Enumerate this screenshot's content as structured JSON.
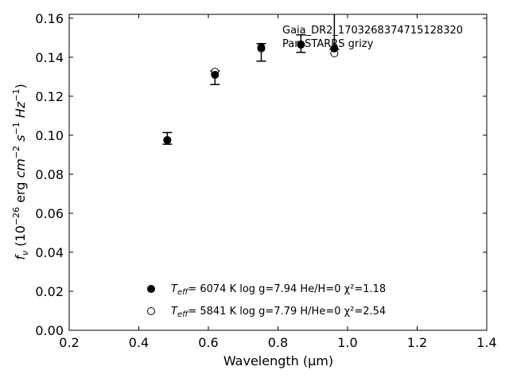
{
  "chart_data": {
    "type": "scatter",
    "xlabel": "Wavelength (μm)",
    "xlim": [
      0.2,
      1.4
    ],
    "ylim": [
      0.0,
      0.162
    ],
    "x_ticks": [
      0.2,
      0.4,
      0.6,
      0.8,
      1.0,
      1.2,
      1.4
    ],
    "y_ticks": [
      0.0,
      0.02,
      0.04,
      0.06,
      0.08,
      0.1,
      0.12,
      0.14,
      0.16
    ],
    "x_tick_labels": [
      "0.2",
      "0.4",
      "0.6",
      "0.8",
      "1.0",
      "1.2",
      "1.4"
    ],
    "y_tick_labels": [
      "0.00",
      "0.02",
      "0.04",
      "0.06",
      "0.08",
      "0.10",
      "0.12",
      "0.14",
      "0.16"
    ],
    "annotation": [
      "Gaia_DR2_1703268374715128320",
      "Pan-STARRS grizy"
    ],
    "observed": {
      "x": [
        0.482,
        0.619,
        0.752,
        0.866,
        0.962
      ],
      "y": [
        0.0984,
        0.1295,
        0.1425,
        0.147,
        0.16
      ],
      "yerr": [
        0.003,
        0.0035,
        0.0045,
        0.0045,
        0.016
      ]
    },
    "series": [
      {
        "marker": "filled-circle",
        "legend": "6074 K  log g=7.94  He/H=0  χ²=1.18",
        "x": [
          0.482,
          0.619,
          0.752,
          0.866,
          0.962
        ],
        "y": [
          0.0975,
          0.131,
          0.145,
          0.1465,
          0.1445
        ]
      },
      {
        "marker": "open-circle",
        "legend": "5841 K  log g=7.79  H/He=0  χ²=2.54",
        "x": [
          0.482,
          0.619,
          0.752,
          0.866,
          0.962
        ],
        "y": [
          0.0975,
          0.1325,
          0.1445,
          0.1465,
          0.142
        ]
      }
    ]
  }
}
